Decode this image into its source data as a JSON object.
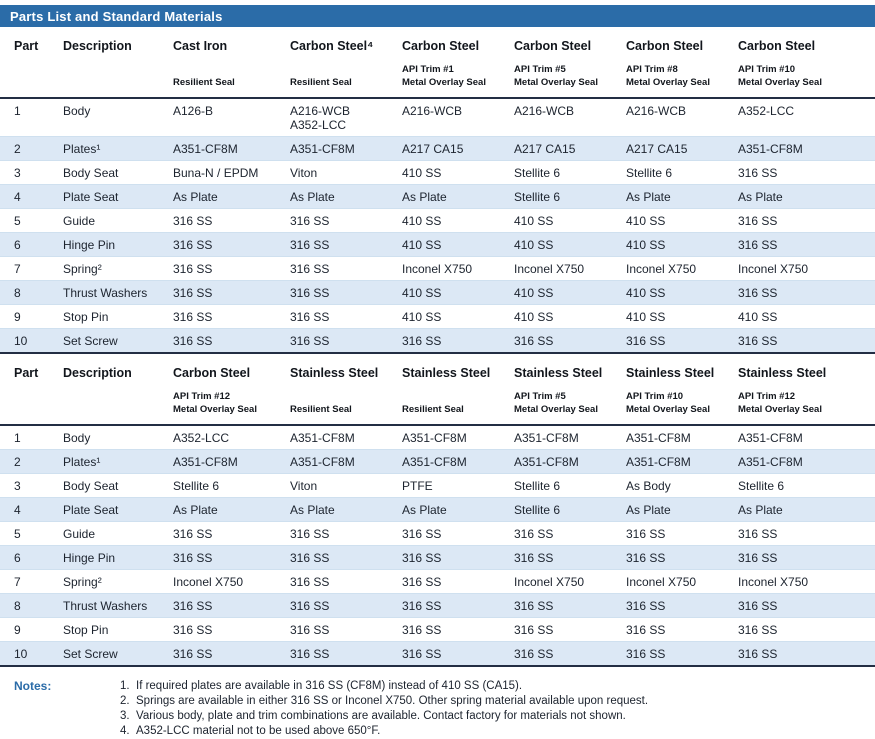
{
  "title": "Parts List and Standard Materials",
  "colors": {
    "title_bar": "#2B6CA8",
    "row_shade": "#DCE8F5",
    "header_rule": "#232E44"
  },
  "tables": [
    {
      "name": "materials-table-1",
      "columns": [
        {
          "title": "Part",
          "sub1": "",
          "sub2": ""
        },
        {
          "title": "Description",
          "sub1": "",
          "sub2": ""
        },
        {
          "title": "Cast Iron",
          "sub1": "",
          "sub2": "Resilient Seal"
        },
        {
          "title": "Carbon Steel⁴",
          "sub1": "",
          "sub2": "Resilient Seal"
        },
        {
          "title": "Carbon Steel",
          "sub1": "API Trim #1",
          "sub2": "Metal Overlay Seal"
        },
        {
          "title": "Carbon Steel",
          "sub1": "API Trim #5",
          "sub2": "Metal Overlay Seal"
        },
        {
          "title": "Carbon Steel",
          "sub1": "API Trim #8",
          "sub2": "Metal Overlay Seal"
        },
        {
          "title": "Carbon Steel",
          "sub1": "API Trim #10",
          "sub2": "Metal Overlay Seal"
        }
      ],
      "rows": [
        {
          "part": "1",
          "description": "Body",
          "values": [
            "A126-B",
            "A216-WCB\nA352-LCC",
            "A216-WCB",
            "A216-WCB",
            "A216-WCB",
            "A352-LCC"
          ]
        },
        {
          "part": "2",
          "description": "Plates¹",
          "values": [
            "A351-CF8M",
            "A351-CF8M",
            "A217 CA15",
            "A217 CA15",
            "A217 CA15",
            "A351-CF8M"
          ]
        },
        {
          "part": "3",
          "description": "Body Seat",
          "values": [
            "Buna-N / EPDM",
            "Viton",
            "410 SS",
            "Stellite 6",
            "Stellite 6",
            "316 SS"
          ]
        },
        {
          "part": "4",
          "description": "Plate Seat",
          "values": [
            "As Plate",
            "As Plate",
            "As Plate",
            "Stellite 6",
            "As Plate",
            "As Plate"
          ]
        },
        {
          "part": "5",
          "description": "Guide",
          "values": [
            "316 SS",
            "316 SS",
            "410 SS",
            "410 SS",
            "410 SS",
            "316 SS"
          ]
        },
        {
          "part": "6",
          "description": "Hinge Pin",
          "values": [
            "316 SS",
            "316 SS",
            "410 SS",
            "410 SS",
            "410 SS",
            "316 SS"
          ]
        },
        {
          "part": "7",
          "description": "Spring²",
          "values": [
            "316 SS",
            "316 SS",
            "Inconel X750",
            "Inconel X750",
            "Inconel X750",
            "Inconel X750"
          ]
        },
        {
          "part": "8",
          "description": "Thrust Washers",
          "values": [
            "316 SS",
            "316 SS",
            "410 SS",
            "410 SS",
            "410 SS",
            "316 SS"
          ]
        },
        {
          "part": "9",
          "description": "Stop Pin",
          "values": [
            "316 SS",
            "316 SS",
            "410 SS",
            "410 SS",
            "410 SS",
            "410 SS"
          ]
        },
        {
          "part": "10",
          "description": "Set Screw",
          "values": [
            "316 SS",
            "316 SS",
            "316 SS",
            "316 SS",
            "316 SS",
            "316 SS"
          ]
        }
      ]
    },
    {
      "name": "materials-table-2",
      "columns": [
        {
          "title": "Part",
          "sub1": "",
          "sub2": ""
        },
        {
          "title": "Description",
          "sub1": "",
          "sub2": ""
        },
        {
          "title": "Carbon Steel",
          "sub1": "API Trim #12",
          "sub2": "Metal Overlay Seal"
        },
        {
          "title": "Stainless Steel",
          "sub1": "",
          "sub2": "Resilient Seal"
        },
        {
          "title": "Stainless Steel",
          "sub1": "",
          "sub2": "Resilient Seal"
        },
        {
          "title": "Stainless Steel",
          "sub1": "API Trim #5",
          "sub2": "Metal Overlay Seal"
        },
        {
          "title": "Stainless Steel",
          "sub1": "API Trim #10",
          "sub2": "Metal Overlay Seal"
        },
        {
          "title": "Stainless Steel",
          "sub1": "API Trim #12",
          "sub2": "Metal Overlay Seal"
        }
      ],
      "rows": [
        {
          "part": "1",
          "description": "Body",
          "values": [
            "A352-LCC",
            "A351-CF8M",
            "A351-CF8M",
            "A351-CF8M",
            "A351-CF8M",
            "A351-CF8M"
          ]
        },
        {
          "part": "2",
          "description": "Plates¹",
          "values": [
            "A351-CF8M",
            "A351-CF8M",
            "A351-CF8M",
            "A351-CF8M",
            "A351-CF8M",
            "A351-CF8M"
          ]
        },
        {
          "part": "3",
          "description": "Body Seat",
          "values": [
            "Stellite 6",
            "Viton",
            "PTFE",
            "Stellite 6",
            "As Body",
            "Stellite 6"
          ]
        },
        {
          "part": "4",
          "description": "Plate Seat",
          "values": [
            "As Plate",
            "As Plate",
            "As Plate",
            "Stellite 6",
            "As Plate",
            "As Plate"
          ]
        },
        {
          "part": "5",
          "description": "Guide",
          "values": [
            "316 SS",
            "316 SS",
            "316 SS",
            "316 SS",
            "316 SS",
            "316 SS"
          ]
        },
        {
          "part": "6",
          "description": "Hinge Pin",
          "values": [
            "316 SS",
            "316 SS",
            "316 SS",
            "316 SS",
            "316 SS",
            "316 SS"
          ]
        },
        {
          "part": "7",
          "description": "Spring²",
          "values": [
            "Inconel X750",
            "316 SS",
            "316 SS",
            "Inconel X750",
            "Inconel X750",
            "Inconel X750"
          ]
        },
        {
          "part": "8",
          "description": "Thrust Washers",
          "values": [
            "316 SS",
            "316 SS",
            "316 SS",
            "316 SS",
            "316 SS",
            "316 SS"
          ]
        },
        {
          "part": "9",
          "description": "Stop Pin",
          "values": [
            "316 SS",
            "316 SS",
            "316 SS",
            "316 SS",
            "316 SS",
            "316 SS"
          ]
        },
        {
          "part": "10",
          "description": "Set Screw",
          "values": [
            "316 SS",
            "316 SS",
            "316 SS",
            "316 SS",
            "316 SS",
            "316 SS"
          ]
        }
      ]
    }
  ],
  "notes": {
    "label": "Notes:",
    "items": [
      {
        "num": "1.",
        "text": "If required plates are available in 316 SS (CF8M) instead of 410 SS (CA15)."
      },
      {
        "num": "2.",
        "text": "Springs are available in either 316 SS or Inconel X750. Other spring material available upon request."
      },
      {
        "num": "3.",
        "text": "Various body, plate and trim combinations are available. Contact factory for materials not shown."
      },
      {
        "num": "4.",
        "text": "A352-LCC material not to be used above 650°F."
      }
    ]
  }
}
